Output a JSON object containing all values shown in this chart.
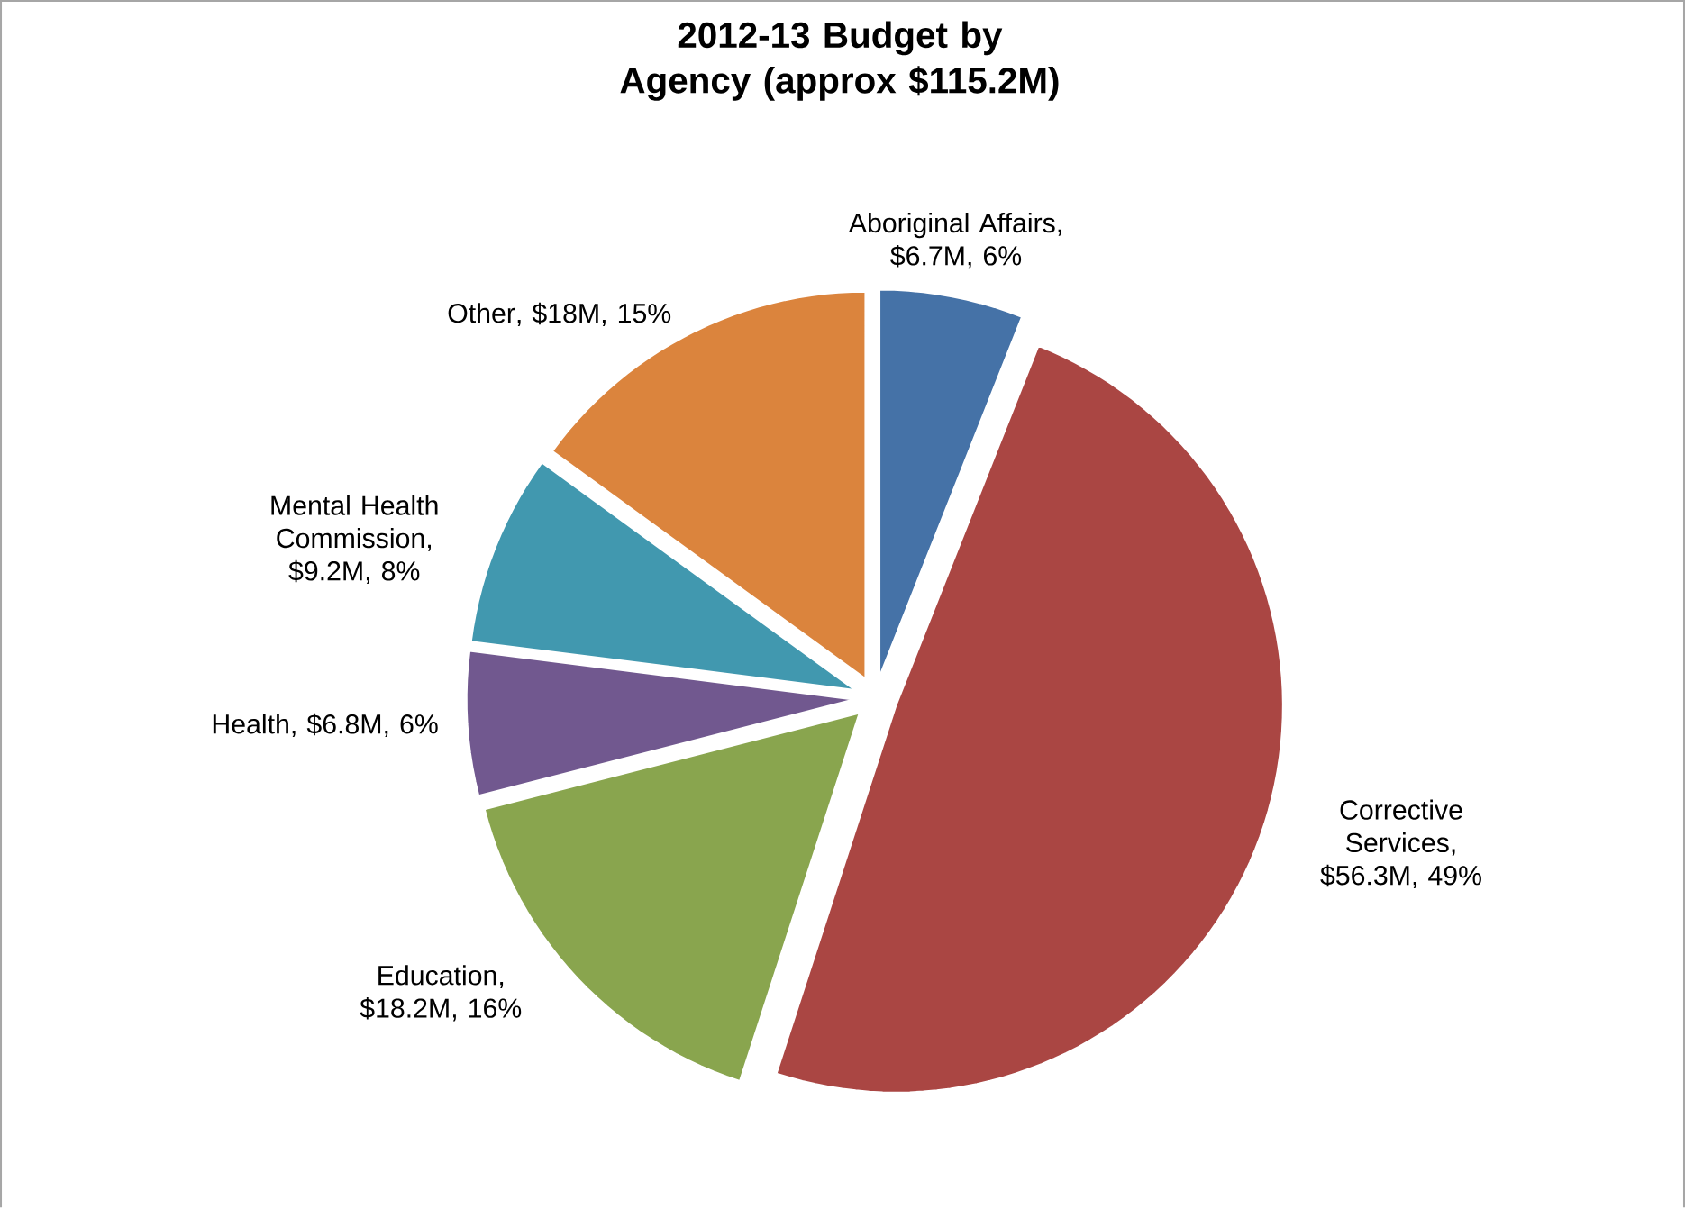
{
  "chart_data": {
    "type": "pie",
    "title": "2012-13 Budget by Agency (approx $115.2M)",
    "categories": [
      "Aboriginal Affairs",
      "Corrective Services",
      "Education",
      "Health",
      "Mental Health Commission",
      "Other"
    ],
    "values": [
      6,
      49,
      16,
      6,
      8,
      15
    ],
    "value_labels": [
      ", $6.7M, 6%",
      ", $56.3M, 49%",
      ", $18.2M, 16%",
      ", $6.8M, 6%",
      ", $9.2M, 8%",
      ", $18M, 15%"
    ],
    "colors": [
      "#4572a7",
      "#aa4643",
      "#89a54e",
      "#71588f",
      "#4198af",
      "#db843d"
    ]
  }
}
